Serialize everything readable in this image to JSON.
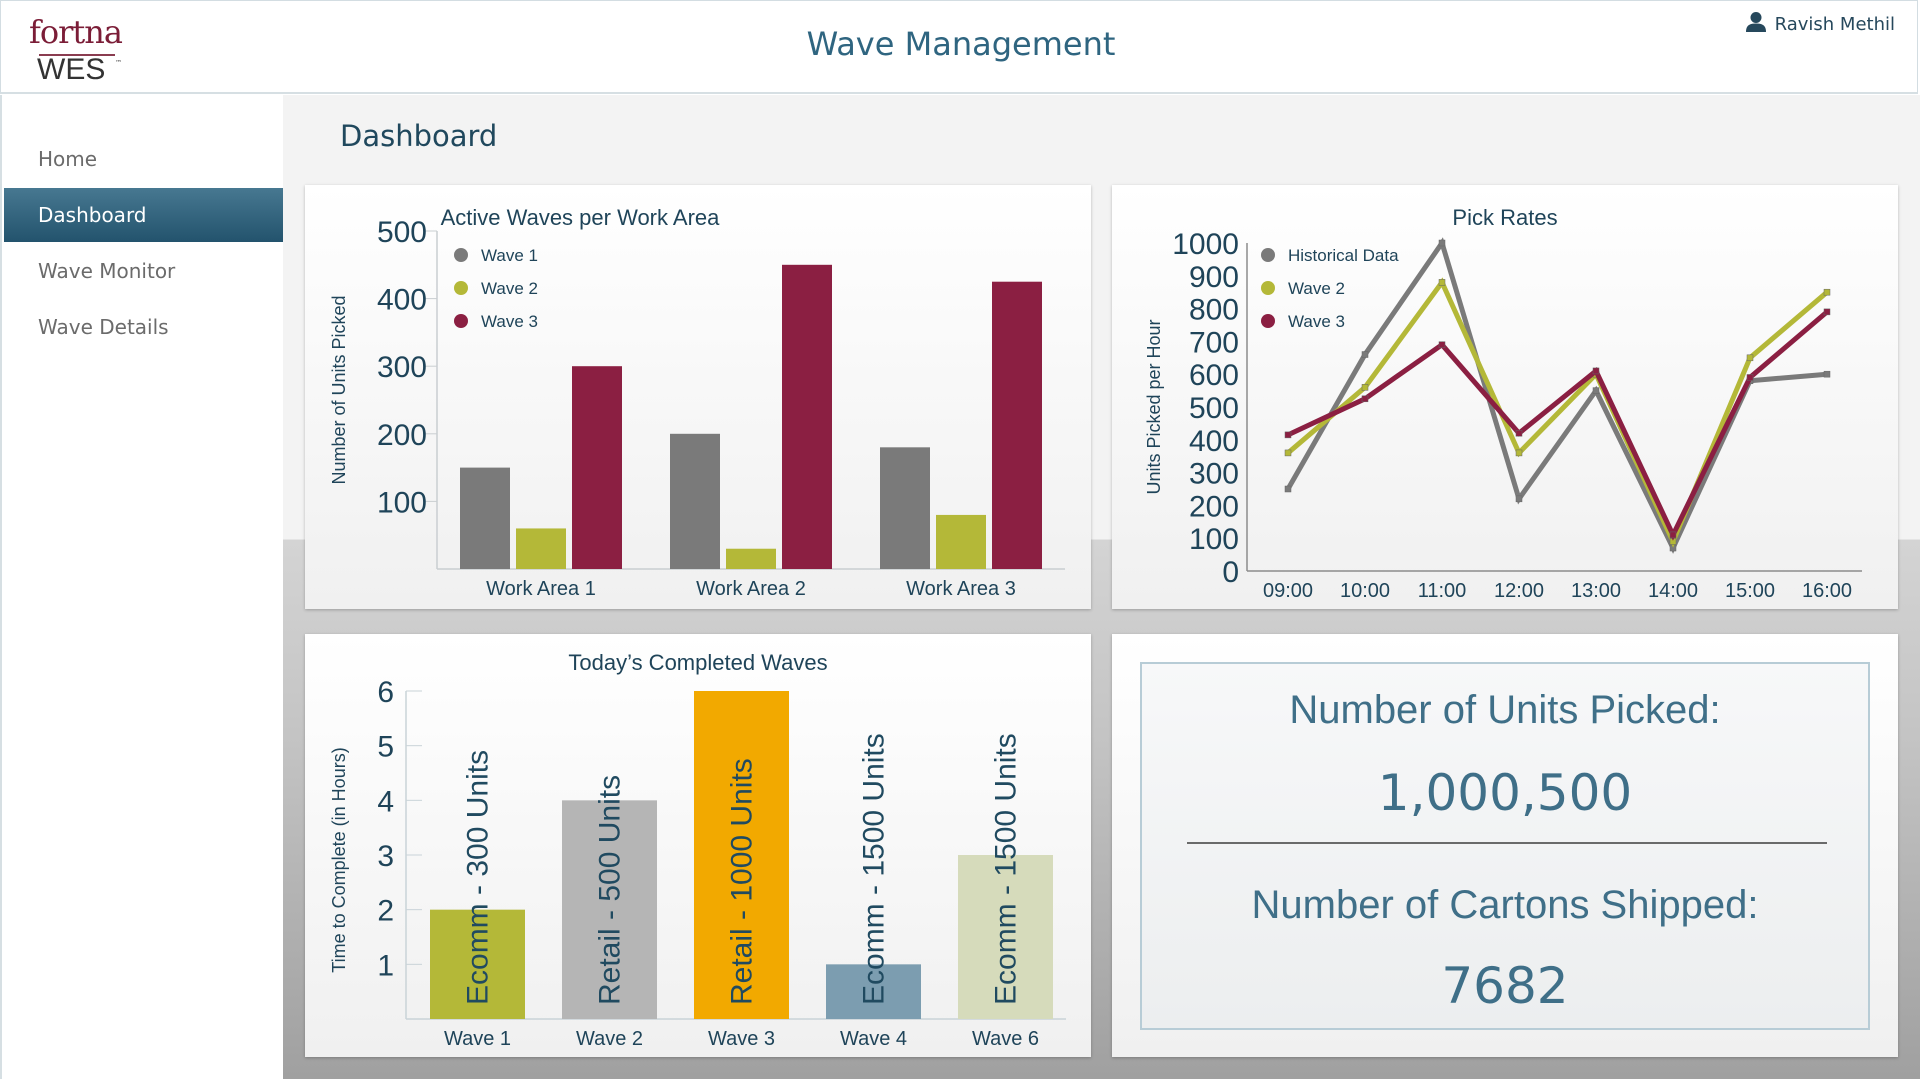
{
  "header": {
    "logo_top": "fortna",
    "logo_bottom": "WES",
    "logo_tm": "™",
    "title": "Wave Management",
    "user_icon": "user-icon",
    "user_name": "Ravish Methil"
  },
  "sidebar": {
    "items": [
      {
        "label": "Home",
        "active": false
      },
      {
        "label": "Dashboard",
        "active": true
      },
      {
        "label": "Wave Monitor",
        "active": false
      },
      {
        "label": "Wave Details",
        "active": false
      }
    ]
  },
  "main": {
    "page_title": "Dashboard",
    "stats": {
      "units_label": "Number of Units Picked:",
      "units_value": "1,000,500",
      "cartons_label": "Number of Cartons Shipped:",
      "cartons_value": "7682"
    }
  },
  "colors": {
    "accent": "#2f6580",
    "wave1": "#7a7a7a",
    "wave2": "#b4b838",
    "wave3": "#8b1f42"
  },
  "chart_data": [
    {
      "id": "active-waves",
      "type": "bar",
      "title": "Active Waves per Work Area",
      "xlabel": "",
      "ylabel": "Number of Units Picked",
      "categories": [
        "Work Area 1",
        "Work Area 2",
        "Work Area 3"
      ],
      "yticks": [
        100,
        200,
        300,
        400,
        500
      ],
      "ylim": [
        0,
        500
      ],
      "grid": false,
      "legend": "top-left",
      "series": [
        {
          "name": "Wave 1",
          "color": "#7a7a7a",
          "values": [
            150,
            200,
            180
          ]
        },
        {
          "name": "Wave 2",
          "color": "#b4b838",
          "values": [
            60,
            30,
            80
          ]
        },
        {
          "name": "Wave 3",
          "color": "#8b1f42",
          "values": [
            300,
            450,
            425
          ]
        }
      ]
    },
    {
      "id": "pick-rates",
      "type": "line",
      "title": "Pick Rates",
      "xlabel": "",
      "ylabel": "Units Picked per Hour",
      "x": [
        "09:00",
        "10:00",
        "11:00",
        "12:00",
        "13:00",
        "14:00",
        "15:00",
        "16:00"
      ],
      "yticks": [
        0,
        100,
        200,
        300,
        400,
        500,
        600,
        700,
        800,
        900,
        1000
      ],
      "ylim": [
        0,
        1000
      ],
      "grid": false,
      "legend": "top-left",
      "series": [
        {
          "name": "Historical Data",
          "color": "#7a7a7a",
          "values": [
            250,
            660,
            1000,
            220,
            550,
            70,
            580,
            600
          ]
        },
        {
          "name": "Wave 2",
          "color": "#b4b838",
          "values": [
            360,
            560,
            880,
            360,
            600,
            90,
            650,
            850
          ]
        },
        {
          "name": "Wave 3",
          "color": "#8b1f42",
          "values": [
            415,
            525,
            690,
            420,
            610,
            110,
            590,
            790
          ]
        }
      ]
    },
    {
      "id": "completed-waves",
      "type": "bar",
      "title": "Today’s Completed Waves",
      "xlabel": "",
      "ylabel": "Time to Complete (in Hours)",
      "categories": [
        "Wave 1",
        "Wave 2",
        "Wave 3",
        "Wave 4",
        "Wave 6"
      ],
      "yticks": [
        1,
        2,
        3,
        4,
        5,
        6
      ],
      "ylim": [
        0,
        6
      ],
      "grid": false,
      "values": [
        2,
        4,
        6,
        1,
        3
      ],
      "bar_labels": [
        "Ecomm - 300 Units",
        "Retail - 500 Units",
        "Retail - 1000 Units",
        "Ecomm - 1500 Units",
        "Ecomm - 1500 Units"
      ],
      "colors": [
        "#b4b838",
        "#b5b5b5",
        "#f2a900",
        "#7c9db0",
        "#d6dbbb"
      ]
    }
  ]
}
